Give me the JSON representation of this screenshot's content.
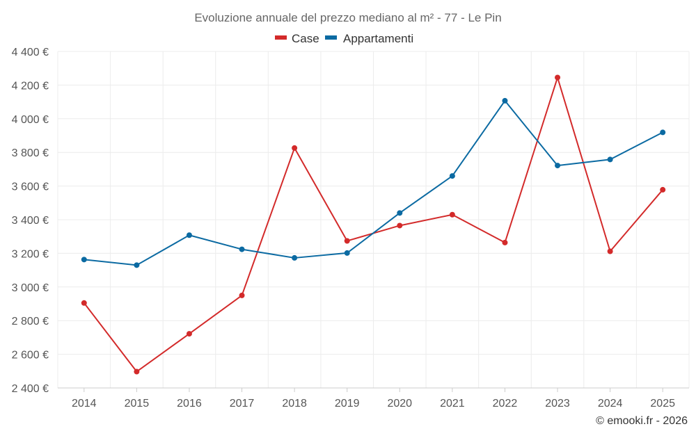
{
  "chart_data": {
    "type": "line",
    "title": "Evoluzione annuale del prezzo mediano al m² - 77 - Le Pin",
    "categories": [
      "2014",
      "2015",
      "2016",
      "2017",
      "2018",
      "2019",
      "2020",
      "2021",
      "2022",
      "2023",
      "2024",
      "2025"
    ],
    "series": [
      {
        "name": "Case",
        "color": "#d32a2a",
        "values": [
          2905,
          2497,
          2722,
          2950,
          3826,
          3274,
          3365,
          3430,
          3264,
          4245,
          3212,
          3578
        ]
      },
      {
        "name": "Appartamenti",
        "color": "#0b6aa2",
        "values": [
          3163,
          3130,
          3308,
          3224,
          3173,
          3202,
          3440,
          3660,
          4107,
          3722,
          3758,
          3919
        ]
      }
    ],
    "ylim": [
      2400,
      4400
    ],
    "yticks": [
      2400,
      2600,
      2800,
      3000,
      3200,
      3400,
      3600,
      3800,
      4000,
      4200,
      4400
    ],
    "ytick_labels": [
      "2 400 €",
      "2 600 €",
      "2 800 €",
      "3 000 €",
      "3 200 €",
      "3 400 €",
      "3 600 €",
      "3 800 €",
      "4 000 €",
      "4 200 €",
      "4 400 €"
    ],
    "xlabel": "",
    "ylabel": "",
    "grid": true,
    "legend_position": "top-center"
  },
  "footer": {
    "copyright": "© emooki.fr - 2026"
  }
}
